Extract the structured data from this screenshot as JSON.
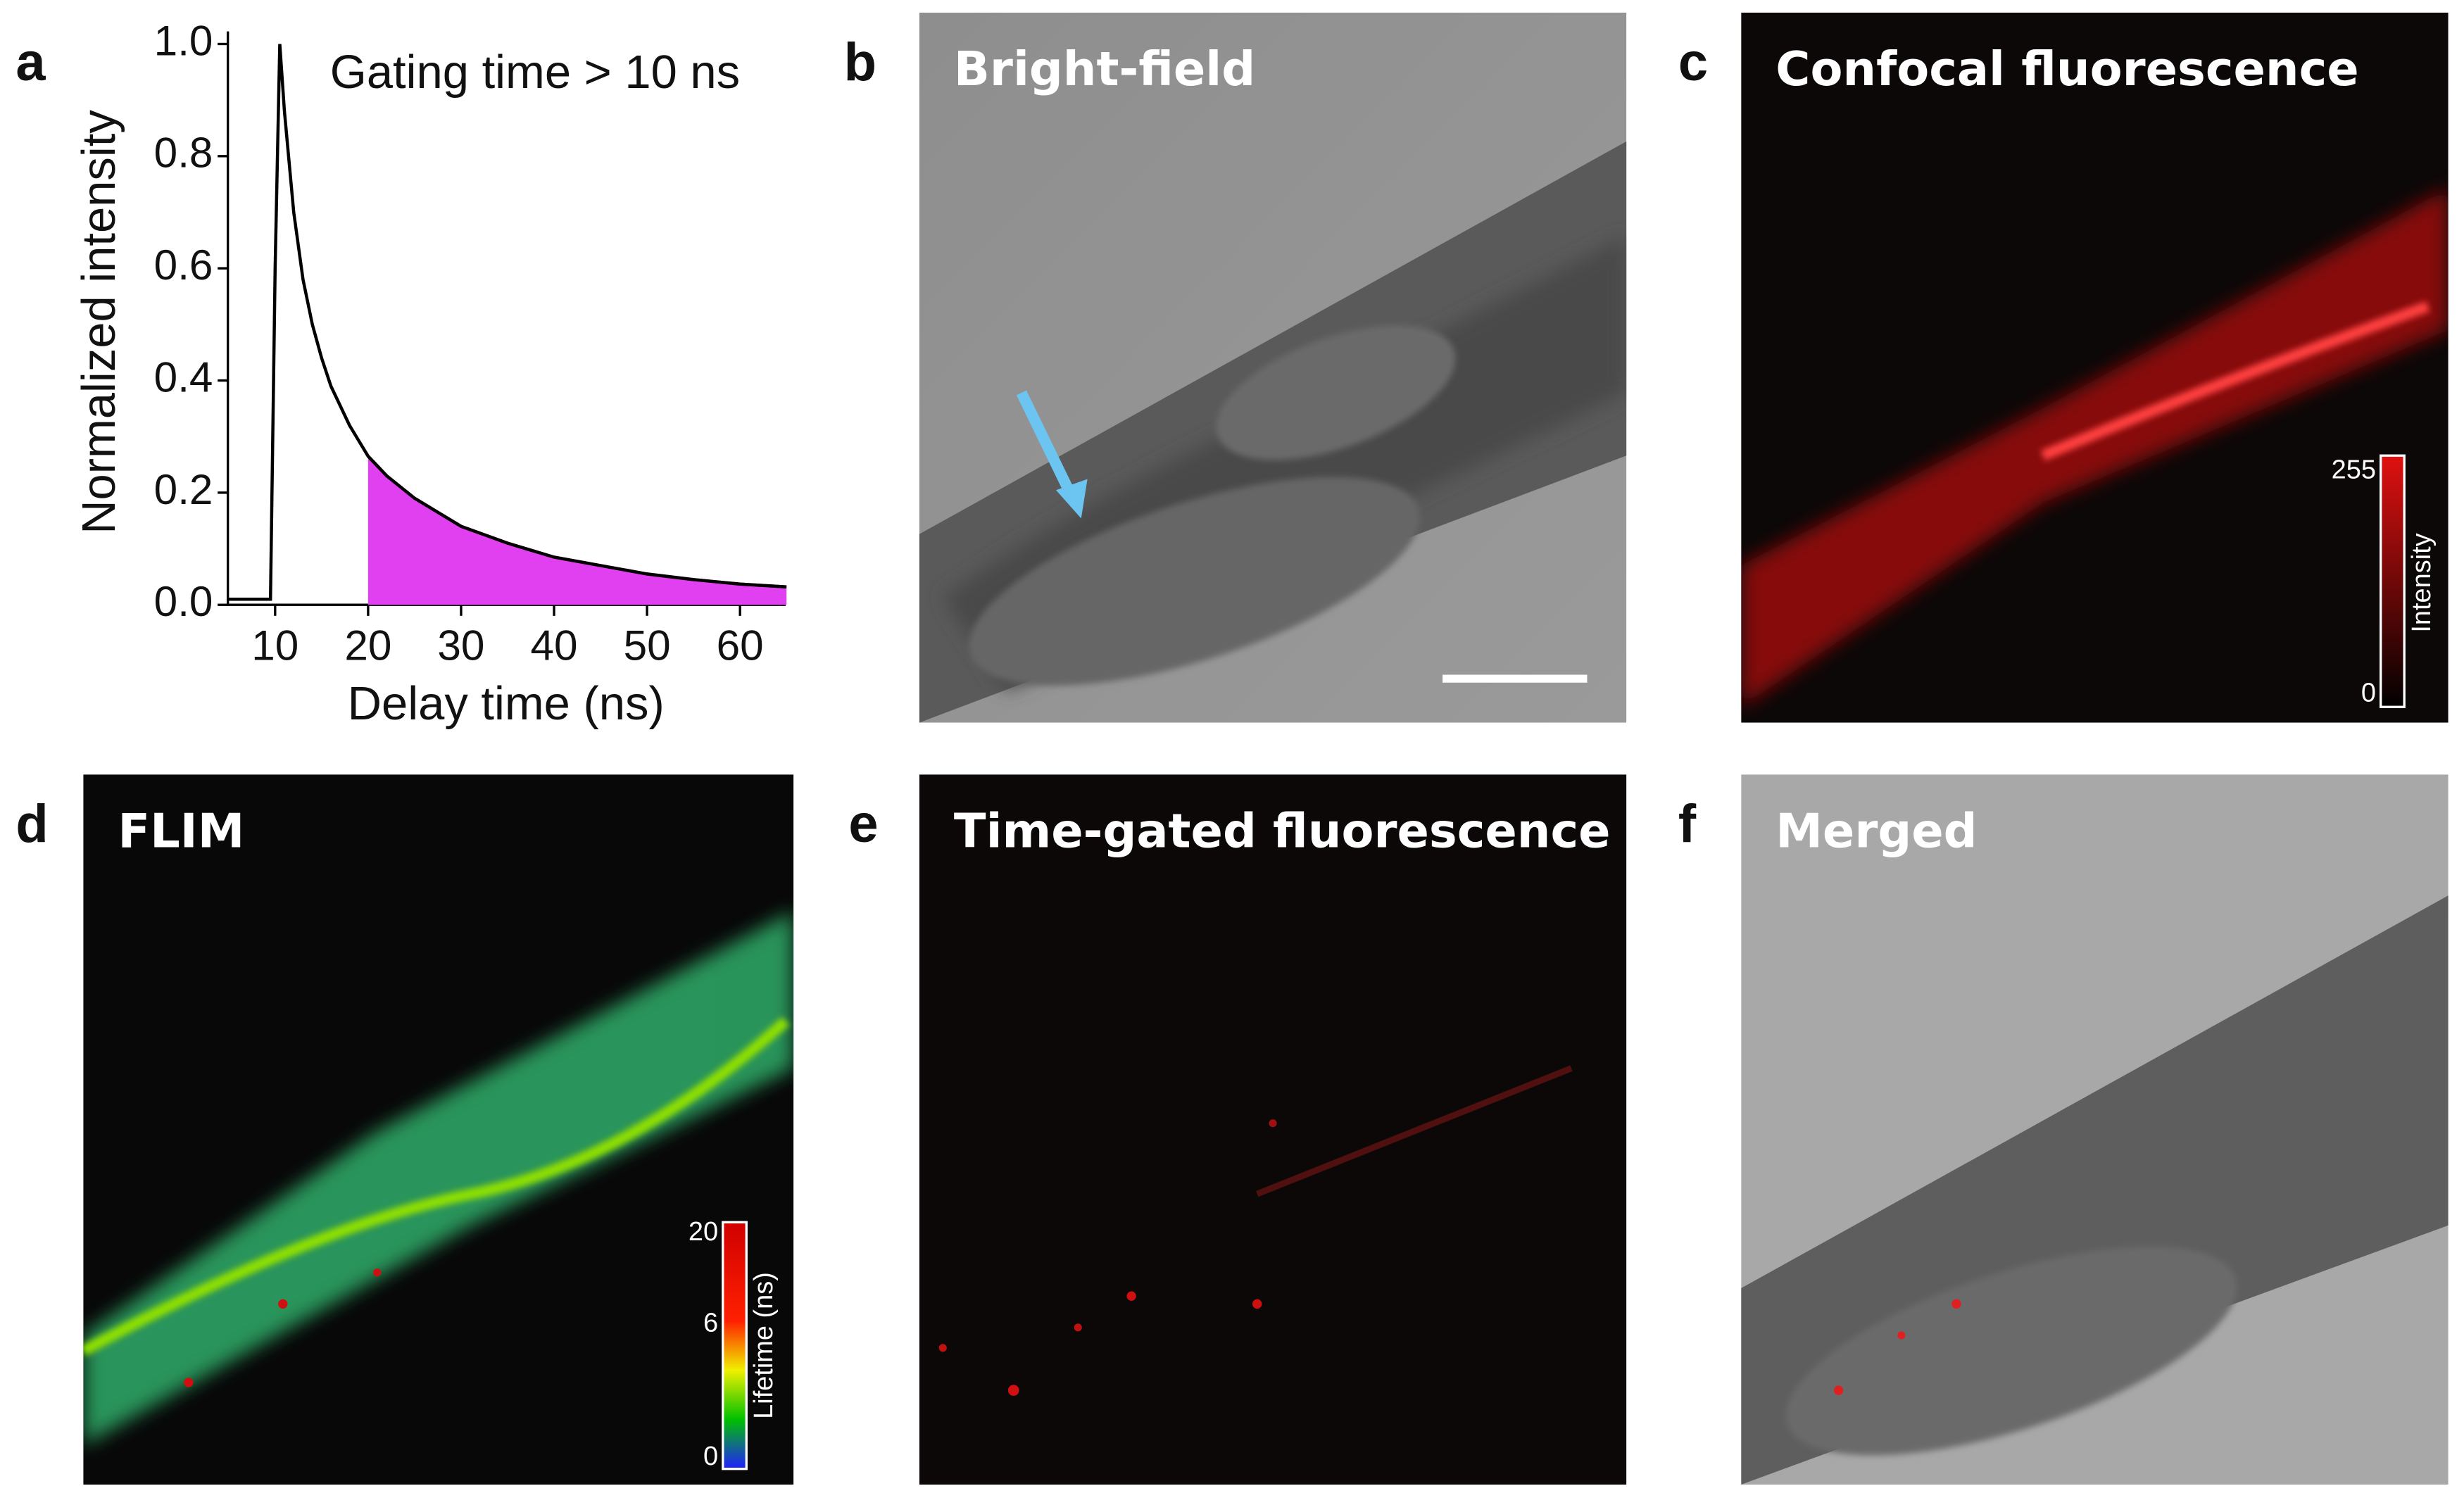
{
  "chart_data": {
    "type": "line",
    "panel_label": "a",
    "annotation": "Gating time > 10 ns",
    "x_label": "Delay time (ns)",
    "y_label": "Normalized intensity",
    "xlim": [
      5,
      65
    ],
    "ylim": [
      0,
      1
    ],
    "xticks": [
      10,
      20,
      30,
      40,
      50,
      60
    ],
    "yticks": [
      {
        "value": 0,
        "label": "0.0"
      },
      0.2,
      0.4,
      0.6,
      0.8,
      {
        "value": 1,
        "label": "1.0"
      }
    ],
    "series": [
      {
        "color": "#000000",
        "x": [
          5,
          8,
          9.5,
          10,
          10.5,
          11,
          12,
          13,
          14,
          15,
          16,
          18,
          20,
          22,
          25,
          30,
          35,
          40,
          45,
          50,
          55,
          60,
          65
        ],
        "values": [
          0.01,
          0.01,
          0.01,
          0.6,
          1.0,
          0.88,
          0.7,
          0.58,
          0.5,
          0.44,
          0.39,
          0.32,
          0.265,
          0.23,
          0.19,
          0.14,
          0.11,
          0.085,
          0.07,
          0.055,
          0.045,
          0.037,
          0.032
        ]
      },
      {
        "color": "#d0204a",
        "fill": "#e040f0",
        "x": [
          20,
          22,
          25,
          30,
          35,
          40,
          45,
          50,
          55,
          60,
          65
        ],
        "values": [
          0.265,
          0.23,
          0.19,
          0.14,
          0.11,
          0.085,
          0.07,
          0.055,
          0.045,
          0.037,
          0.032
        ]
      }
    ]
  },
  "panels": [
    {
      "label": "b",
      "title": "Bright-field"
    },
    {
      "label": "c",
      "title": "Confocal fluorescence",
      "colorbar": {
        "ticks": [
          255,
          0
        ],
        "title": "Intensity"
      }
    },
    {
      "label": "d",
      "title": "FLIM",
      "colorbar": {
        "ticks": [
          20,
          6,
          0
        ],
        "title": "Lifetime (ns)"
      }
    },
    {
      "label": "e",
      "title": "Time-gated fluorescence"
    },
    {
      "label": "f",
      "title": "Merged"
    }
  ]
}
